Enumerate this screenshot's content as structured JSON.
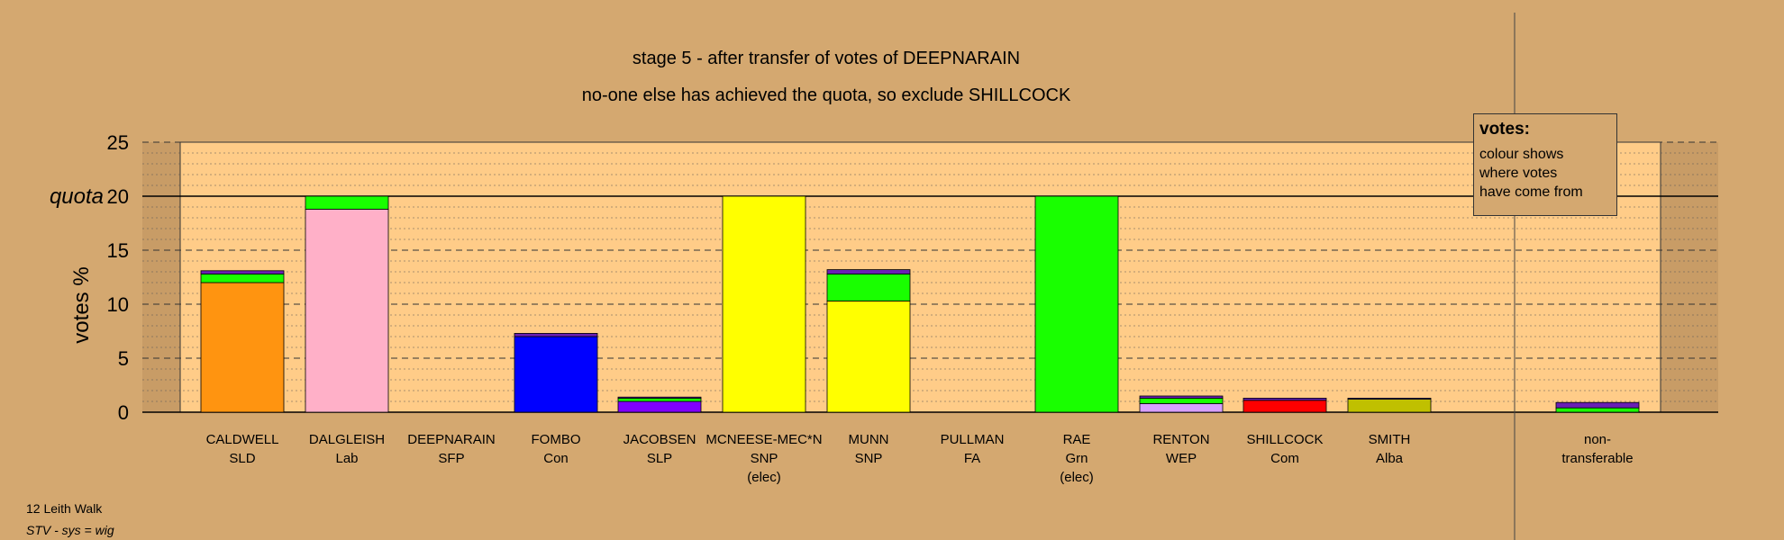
{
  "title_line1": "stage 5 - after transfer of votes of DEEPNARAIN",
  "title_line2": "no-one else has achieved the quota, so exclude SHILLCOCK",
  "legend": {
    "title": "votes:",
    "lines": [
      "colour shows",
      "where votes",
      "have come from"
    ]
  },
  "footer": {
    "line1": "12 Leith Walk",
    "line2": "STV - sys = wig"
  },
  "colors": {
    "background": "#d4a870",
    "plot_area": "#ffcc88",
    "SLD": "#ff9410",
    "Lab": "#ffb0c8",
    "Con": "#0000ff",
    "SLP": "#8000ff",
    "SNP": "#ffff00",
    "Grn": "#19ff00",
    "WEP": "#d8a0ff",
    "Com": "#ff0000",
    "Alba": "#c0c000",
    "SFP": "#6a1fb5"
  },
  "chart_data": {
    "type": "bar",
    "stacked": true,
    "ylabel": "votes %",
    "ylim": [
      0,
      25
    ],
    "yticks": [
      0,
      5,
      10,
      15,
      20,
      25
    ],
    "quota": 20,
    "quota_label": "quota",
    "grid": true,
    "candidates": [
      {
        "name": "CALDWELL",
        "party": "SLD",
        "note": "",
        "segments": [
          {
            "color": "SLD",
            "value": 12.0
          },
          {
            "color": "Grn",
            "value": 0.8
          },
          {
            "color": "SFP",
            "value": 0.3
          }
        ]
      },
      {
        "name": "DALGLEISH",
        "party": "Lab",
        "note": "",
        "segments": [
          {
            "color": "Lab",
            "value": 18.8
          },
          {
            "color": "Grn",
            "value": 1.2
          }
        ]
      },
      {
        "name": "DEEPNARAIN",
        "party": "SFP",
        "note": "",
        "segments": []
      },
      {
        "name": "FOMBO",
        "party": "Con",
        "note": "",
        "segments": [
          {
            "color": "Con",
            "value": 7.0
          },
          {
            "color": "SFP",
            "value": 0.3
          }
        ]
      },
      {
        "name": "JACOBSEN",
        "party": "SLP",
        "note": "",
        "segments": [
          {
            "color": "SLP",
            "value": 1.0
          },
          {
            "color": "Grn",
            "value": 0.3
          },
          {
            "color": "SFP",
            "value": 0.1
          }
        ]
      },
      {
        "name": "MCNEESE-MEC*N",
        "party": "SNP",
        "note": "(elec)",
        "segments": [
          {
            "color": "SNP",
            "value": 20.0
          }
        ]
      },
      {
        "name": "MUNN",
        "party": "SNP",
        "note": "",
        "segments": [
          {
            "color": "SNP",
            "value": 10.3
          },
          {
            "color": "Grn",
            "value": 2.5
          },
          {
            "color": "SFP",
            "value": 0.4
          }
        ]
      },
      {
        "name": "PULLMAN",
        "party": "FA",
        "note": "",
        "segments": []
      },
      {
        "name": "RAE",
        "party": "Grn",
        "note": "(elec)",
        "segments": [
          {
            "color": "Grn",
            "value": 20.0
          }
        ]
      },
      {
        "name": "RENTON",
        "party": "WEP",
        "note": "",
        "segments": [
          {
            "color": "WEP",
            "value": 0.8
          },
          {
            "color": "Grn",
            "value": 0.5
          },
          {
            "color": "SFP",
            "value": 0.2
          }
        ]
      },
      {
        "name": "SHILLCOCK",
        "party": "Com",
        "note": "",
        "segments": [
          {
            "color": "Com",
            "value": 1.1
          },
          {
            "color": "SFP",
            "value": 0.2
          }
        ]
      },
      {
        "name": "SMITH",
        "party": "Alba",
        "note": "",
        "segments": [
          {
            "color": "Alba",
            "value": 1.2
          },
          {
            "color": "SFP",
            "value": 0.1
          }
        ]
      }
    ],
    "nontransferable": {
      "label_line1": "non-",
      "label_line2": "transferable",
      "segments": [
        {
          "color": "Grn",
          "value": 0.4
        },
        {
          "color": "SFP",
          "value": 0.5
        }
      ]
    }
  }
}
